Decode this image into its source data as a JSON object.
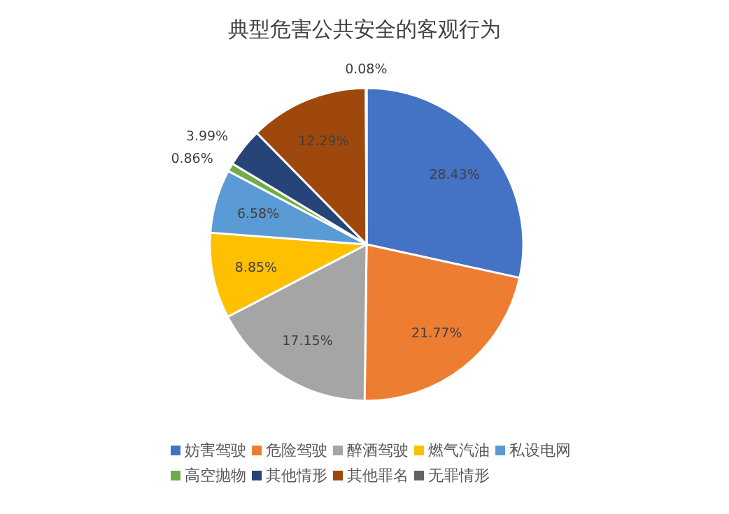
{
  "chart_data": {
    "type": "pie",
    "title": "典型危害公共安全的客观行为",
    "categories": [
      "妨害驾驶",
      "危险驾驶",
      "醉酒驾驶",
      "燃气汽油",
      "私设电网",
      "高空抛物",
      "其他情形",
      "其他罪名",
      "无罪情形"
    ],
    "values": [
      28.43,
      21.77,
      17.15,
      8.85,
      6.58,
      0.86,
      3.99,
      12.29,
      0.08
    ],
    "value_labels": [
      "28.43%",
      "21.77%",
      "17.15%",
      "8.85%",
      "6.58%",
      "0.86%",
      "3.99%",
      "12.29%",
      "0.08%"
    ],
    "colors": [
      "#4472c4",
      "#ed7d31",
      "#a5a5a5",
      "#ffc000",
      "#5b9bd5",
      "#70ad47",
      "#264478",
      "#9e480e",
      "#636363"
    ],
    "legend": "bottom"
  }
}
